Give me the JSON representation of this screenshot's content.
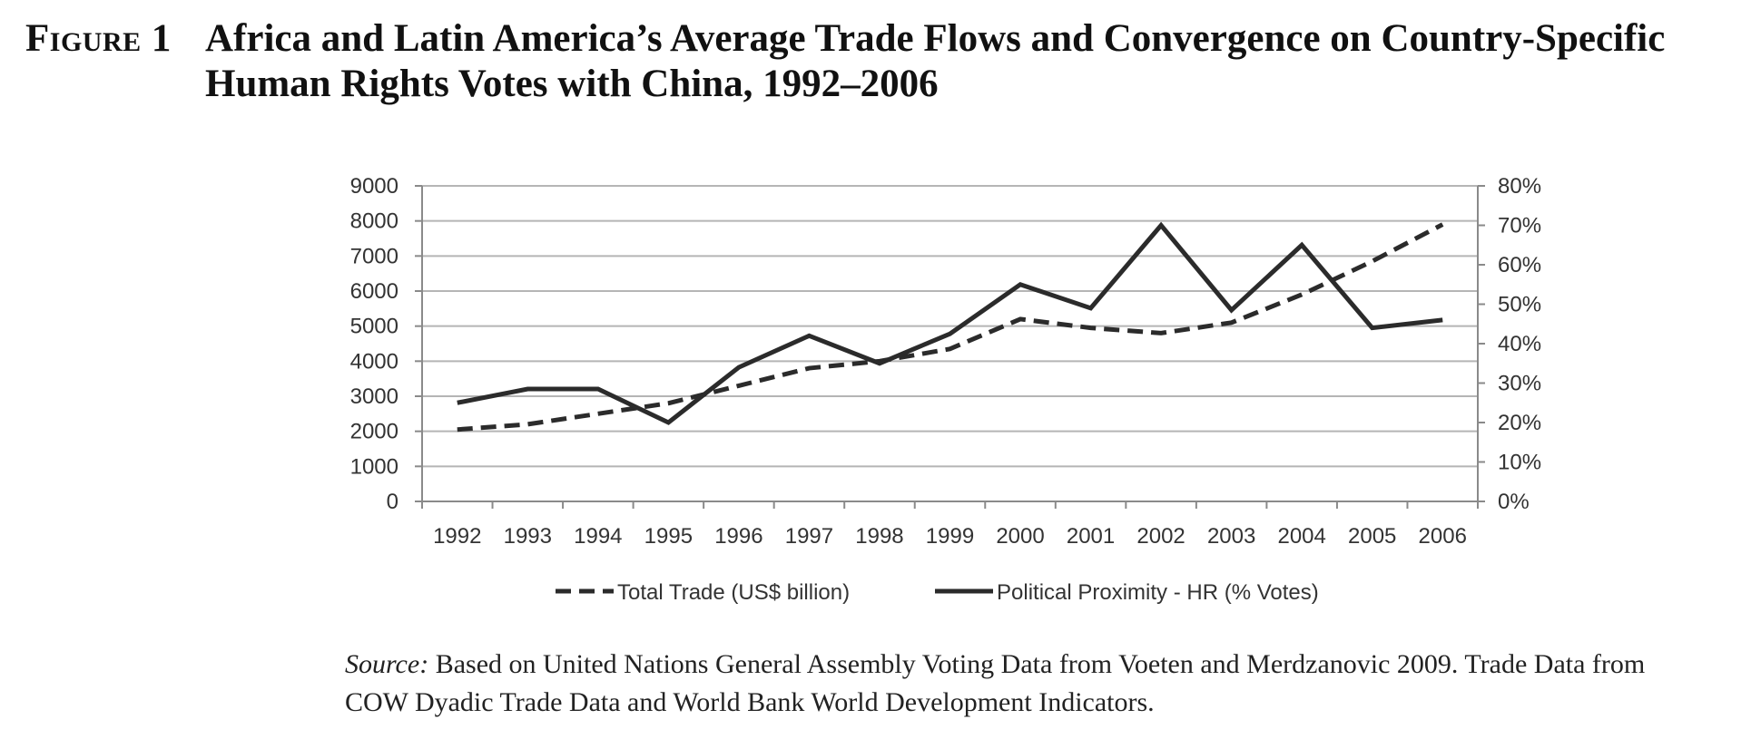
{
  "figure": {
    "label": "Figure 1",
    "title": "Africa and Latin America’s Average Trade Flows and Convergence on Country-Specific Human Rights Votes with China, 1992–2006"
  },
  "source": {
    "lead": "Source:",
    "text": " Based on United Nations General Assembly Voting Data from Voeten and Merdzanovic 2009. Trade Data from COW Dyadic Trade Data and World Bank World Development Indicators."
  },
  "chart_data": {
    "type": "line",
    "title": "",
    "categories": [
      "1992",
      "1993",
      "1994",
      "1995",
      "1996",
      "1997",
      "1998",
      "1999",
      "2000",
      "2001",
      "2002",
      "2003",
      "2004",
      "2005",
      "2006"
    ],
    "y_left": {
      "ylim": [
        0,
        9000
      ],
      "ticks": [
        "0",
        "1000",
        "2000",
        "3000",
        "4000",
        "5000",
        "6000",
        "7000",
        "8000",
        "9000"
      ]
    },
    "y_right": {
      "ylim": [
        0,
        80
      ],
      "ticks": [
        "0%",
        "10%",
        "20%",
        "30%",
        "40%",
        "50%",
        "60%",
        "70%",
        "80%"
      ]
    },
    "grid": true,
    "legend": "bottom",
    "series": [
      {
        "name": "Total Trade (US$ billion)",
        "axis": "left",
        "style": "dashed",
        "values": [
          2050,
          2200,
          2500,
          2800,
          3300,
          3800,
          4000,
          4350,
          5200,
          4950,
          4800,
          5100,
          5900,
          6850,
          7900
        ]
      },
      {
        "name": "Political Proximity - HR (% Votes)",
        "axis": "right",
        "style": "solid",
        "values": [
          25,
          28.5,
          28.5,
          20,
          34,
          42,
          35,
          42.5,
          55,
          49,
          70,
          48.5,
          65,
          44,
          46
        ]
      }
    ],
    "colors": {
      "line": "#2b2b2b",
      "grid": "#b5b5b5",
      "axis": "#8a8a8a",
      "text": "#333333"
    }
  }
}
